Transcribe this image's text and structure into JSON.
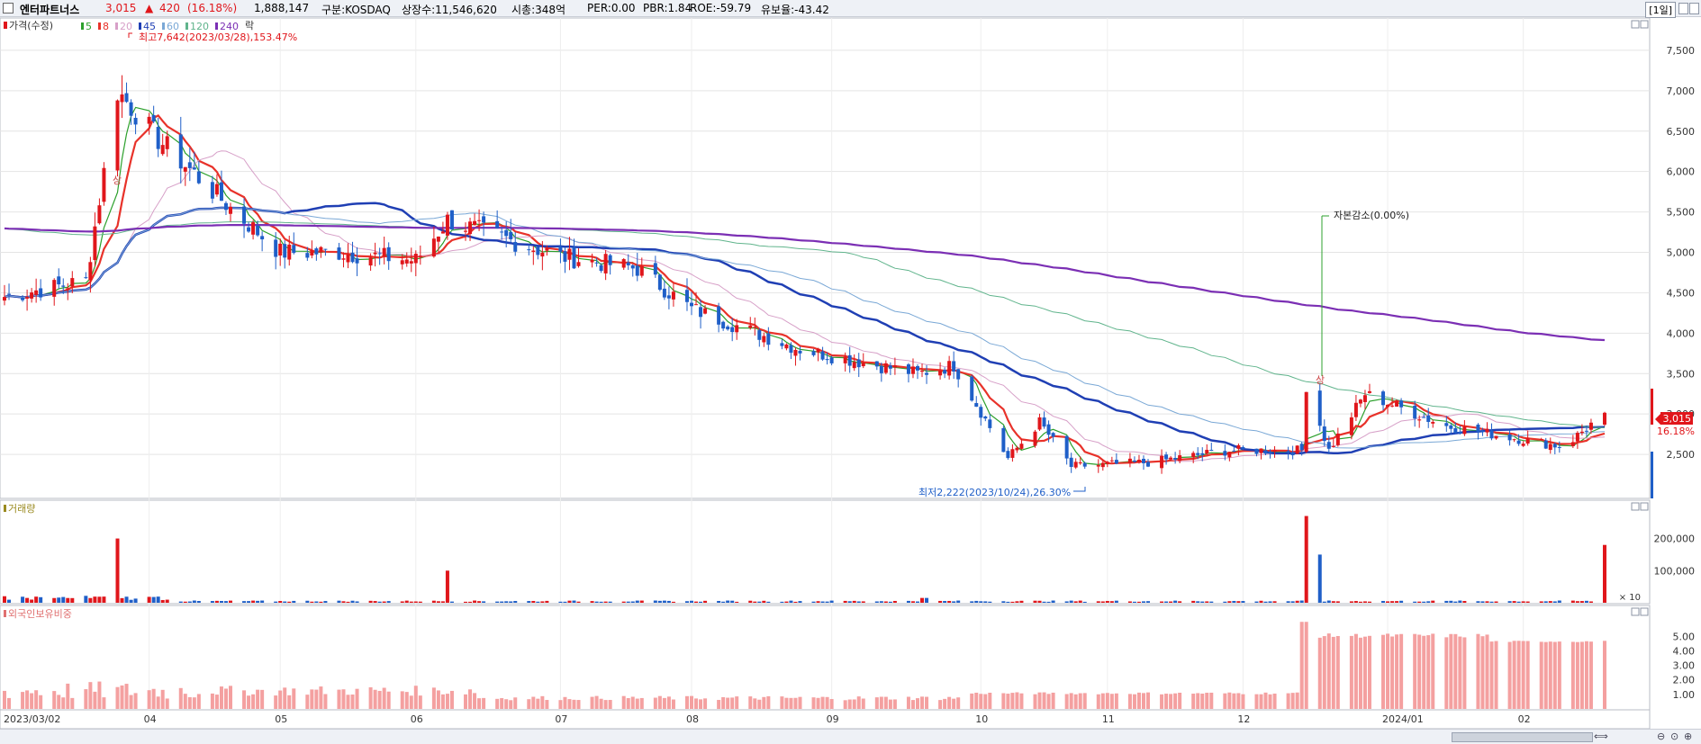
{
  "header": {
    "stock_name": "엔터파트너스",
    "price": "3,015",
    "change_arrow": "▲",
    "change": "420",
    "change_pct": "(16.18%)",
    "volume": "1,888,147",
    "market": "구분:KOSDAQ",
    "shares": "상장수:11,546,620",
    "market_cap": "시총:348억",
    "per": "PER:0.00",
    "pbr": "PBR:1.84",
    "roe": "ROE:-59.79",
    "retention": "유보율:-43.42",
    "period": "[1일]"
  },
  "legend": {
    "price_label": "가격(수정)",
    "ma_items": [
      {
        "label": "5",
        "color": "#2ca02c"
      },
      {
        "label": "8",
        "color": "#e8322a"
      },
      {
        "label": "20",
        "color": "#d7a0c8"
      },
      {
        "label": "45",
        "color": "#1f3fb4"
      },
      {
        "label": "60",
        "color": "#7aa8d6"
      },
      {
        "label": "120",
        "color": "#60b48c"
      },
      {
        "label": "240",
        "color": "#7b2fb4"
      }
    ],
    "extra_label": "락"
  },
  "annotations": {
    "high": "최고7,642(2023/03/28),153.47%",
    "low": "최저2,222(2023/10/24),26.30%",
    "capital_reduction": "자본감소(0.00%)",
    "upper_limit_marker": "상",
    "current_price_tag": "3,015",
    "current_pct_tag": "16.18%"
  },
  "volume_panel": {
    "title": "거래량",
    "ticks": [
      "200,000",
      "100,000"
    ],
    "unit": "× 10"
  },
  "foreign_panel": {
    "title": "외국인보유비중",
    "ticks": [
      "5.00",
      "4.00",
      "3.00",
      "2.00",
      "1.00"
    ]
  },
  "x_axis": {
    "labels": [
      "2023/03/02",
      "04",
      "05",
      "06",
      "07",
      "08",
      "09",
      "10",
      "11",
      "12",
      "2024/01",
      "02"
    ]
  },
  "colors": {
    "up": "#e0161b",
    "down": "#1f5fc8",
    "foreign_bar": "#f4a0a0",
    "grid": "#e4e4e4"
  },
  "chart_data": [
    {
      "type": "candlestick",
      "title": "엔터파트너스",
      "x_range": [
        "2023/03/02",
        "2024/02"
      ],
      "ylim": [
        2000,
        7900
      ],
      "yticks": [
        2500,
        3000,
        3500,
        4000,
        4500,
        5000,
        5500,
        6000,
        6500,
        7000,
        7500
      ],
      "anchor_closes": [
        {
          "date": "2023/03/02",
          "close": 4450
        },
        {
          "date": "2023/03/20",
          "close": 4650
        },
        {
          "date": "2023/03/27",
          "close": 7000
        },
        {
          "date": "2023/04/05",
          "close": 6400
        },
        {
          "date": "2023/04/20",
          "close": 5600
        },
        {
          "date": "2023/05/02",
          "close": 5000
        },
        {
          "date": "2023/05/15",
          "close": 5000
        },
        {
          "date": "2023/06/01",
          "close": 4900
        },
        {
          "date": "2023/06/08",
          "close": 5400
        },
        {
          "date": "2023/07/03",
          "close": 4950
        },
        {
          "date": "2023/07/20",
          "close": 4800
        },
        {
          "date": "2023/08/01",
          "close": 4300
        },
        {
          "date": "2023/08/25",
          "close": 3800
        },
        {
          "date": "2023/09/20",
          "close": 3500
        },
        {
          "date": "2023/09/28",
          "close": 3600
        },
        {
          "date": "2023/10/10",
          "close": 2450
        },
        {
          "date": "2023/10/17",
          "close": 2900
        },
        {
          "date": "2023/10/24",
          "close": 2350
        },
        {
          "date": "2023/11/10",
          "close": 2400
        },
        {
          "date": "2023/11/28",
          "close": 2550
        },
        {
          "date": "2023/12/14",
          "close": 2550
        },
        {
          "date": "2023/12/15",
          "close": 3350
        },
        {
          "date": "2023/12/20",
          "close": 2550
        },
        {
          "date": "2023/12/28",
          "close": 3250
        },
        {
          "date": "2024/01/15",
          "close": 2850
        },
        {
          "date": "2024/02/10",
          "close": 2595
        },
        {
          "date": "2024/02/19",
          "close": 3015
        }
      ],
      "moving_averages": [
        "5",
        "8",
        "20",
        "45",
        "60",
        "120",
        "240"
      ],
      "high": {
        "value": 7642,
        "date": "2023/03/28",
        "pct": 153.47
      },
      "low": {
        "value": 2222,
        "date": "2023/10/24",
        "pct": 26.3
      },
      "last": {
        "price": 3015,
        "change": 420,
        "change_pct": 16.18
      }
    },
    {
      "type": "bar",
      "title": "거래량",
      "unit": "× 10",
      "ylim": [
        0,
        280000
      ],
      "yticks": [
        100000,
        200000
      ],
      "peaks": [
        {
          "date": "2023/03/27",
          "value": 200000
        },
        {
          "date": "2023/06/08",
          "value": 100000
        },
        {
          "date": "2023/12/15",
          "value": 270000
        },
        {
          "date": "2024/02/19",
          "value": 180000
        }
      ]
    },
    {
      "type": "bar",
      "title": "외국인보유비중",
      "ylim": [
        0,
        6.2
      ],
      "yticks": [
        1,
        2,
        3,
        4,
        5
      ],
      "levels": [
        {
          "period": "2023/03",
          "value": 1.2
        },
        {
          "period": "2023/05",
          "value": 1.4
        },
        {
          "period": "2023/07",
          "value": 0.7
        },
        {
          "period": "2023/09",
          "value": 0.7
        },
        {
          "period": "2023/11",
          "value": 1.1
        },
        {
          "period": "2023/12 (after 12/15)",
          "value": 5.1
        },
        {
          "period": "2024/01",
          "value": 5.0
        },
        {
          "period": "2024/02",
          "value": 4.6
        }
      ]
    }
  ]
}
